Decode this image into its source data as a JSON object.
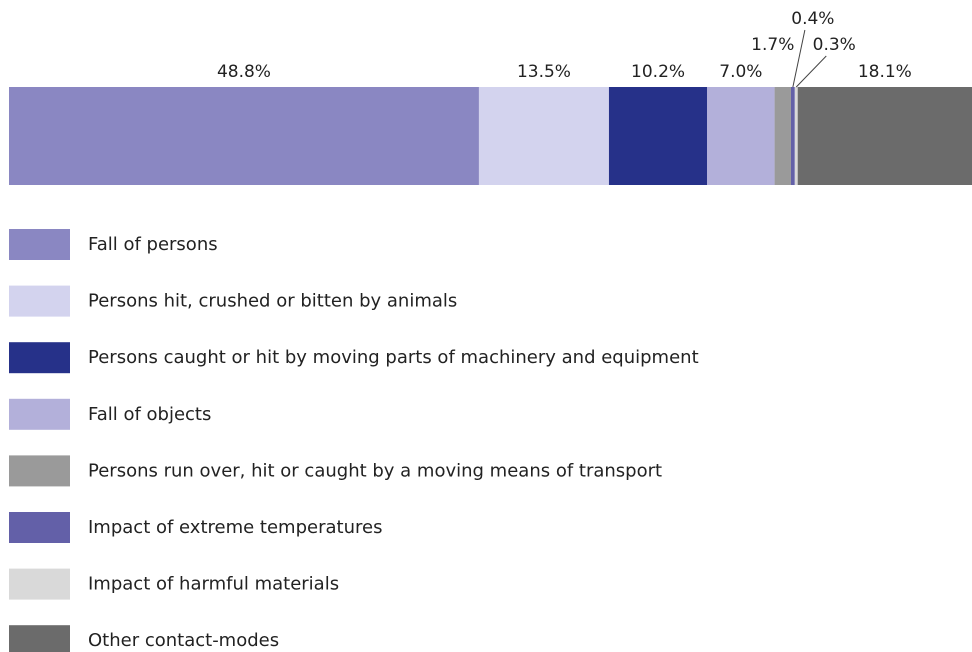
{
  "chart_data": {
    "type": "bar",
    "orientation": "horizontal",
    "stacked": true,
    "series": [
      {
        "name": "Fall of persons",
        "color": "#8a87c2",
        "values": [
          48.8
        ],
        "value_labels": [
          "48.8%"
        ]
      },
      {
        "name": "Persons hit, crushed or bitten by animals",
        "color": "#d3d3ee",
        "values": [
          13.5
        ],
        "value_labels": [
          "13.5%"
        ]
      },
      {
        "name": "Persons caught or hit by moving parts of machinery and equipment",
        "color": "#263189",
        "values": [
          10.2
        ],
        "value_labels": [
          "10.2%"
        ]
      },
      {
        "name": "Fall of objects",
        "color": "#b3b0da",
        "values": [
          7.0
        ],
        "value_labels": [
          "7.0%"
        ]
      },
      {
        "name": "Persons run over, hit or caught by a moving means of transport",
        "color": "#9a9a9a",
        "values": [
          1.7
        ],
        "value_labels": [
          "1.7%"
        ]
      },
      {
        "name": "Impact of extreme temperatures",
        "color": "#6360a8",
        "values": [
          0.4
        ],
        "value_labels": [
          "0.4%"
        ]
      },
      {
        "name": "Impact of harmful materials",
        "color": "#d9d9d9",
        "values": [
          0.3
        ],
        "value_labels": [
          "0.3%"
        ]
      },
      {
        "name": "Other contact-modes",
        "color": "#6b6b6b",
        "values": [
          18.1
        ],
        "value_labels": [
          "18.1%"
        ]
      }
    ]
  }
}
